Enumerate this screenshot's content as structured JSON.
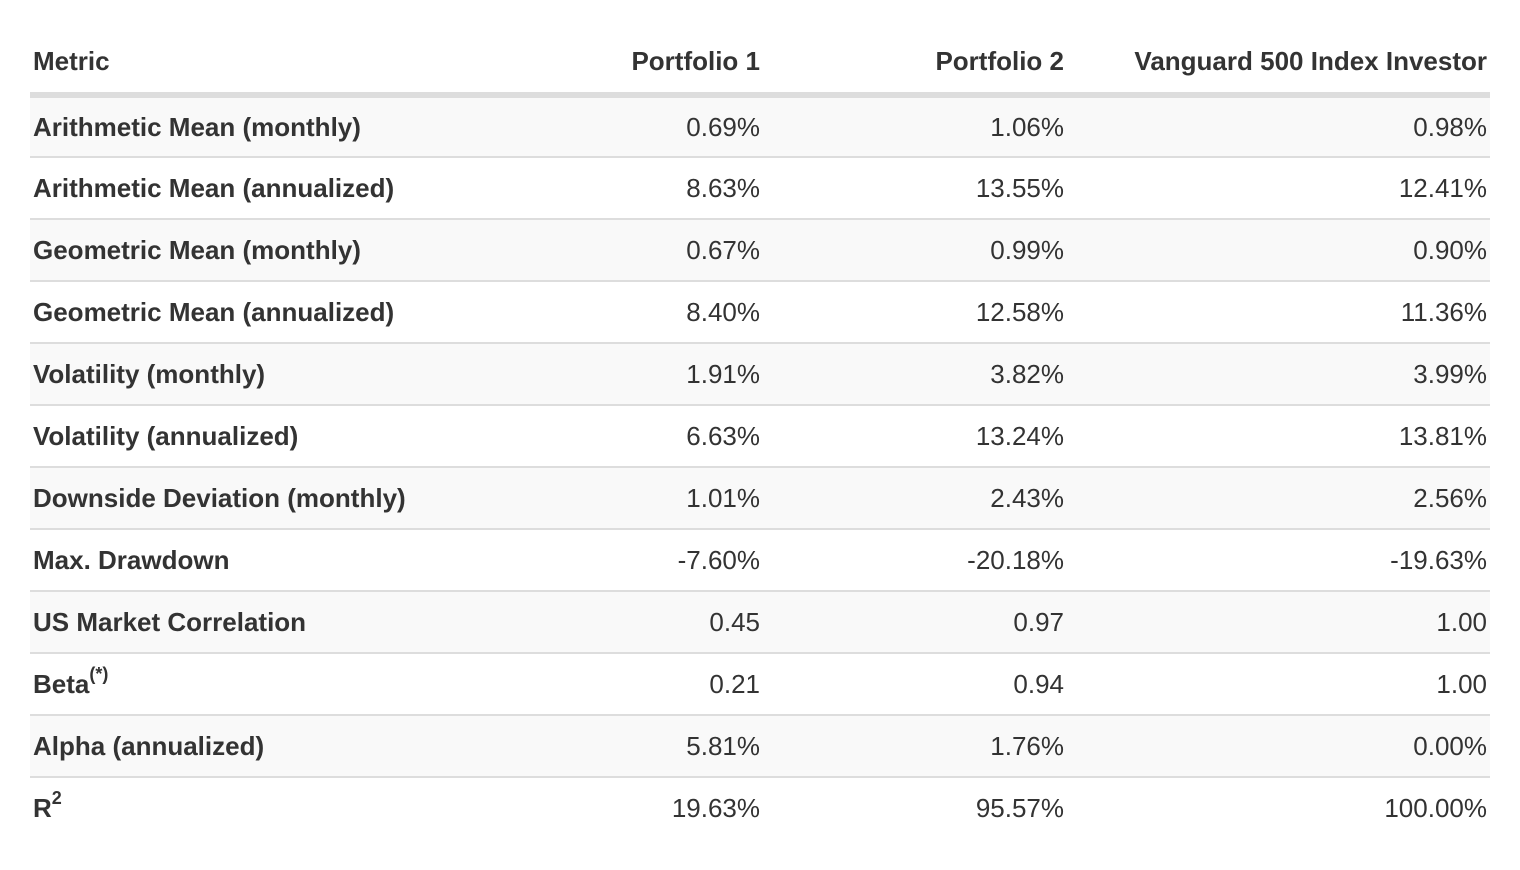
{
  "table": {
    "headers": [
      "Metric",
      "Portfolio 1",
      "Portfolio 2",
      "Vanguard 500 Index Investor"
    ],
    "rows": [
      {
        "metric": "Arithmetic Mean (monthly)",
        "sup": "",
        "p1": "0.69%",
        "p2": "1.06%",
        "bench": "0.98%"
      },
      {
        "metric": "Arithmetic Mean (annualized)",
        "sup": "",
        "p1": "8.63%",
        "p2": "13.55%",
        "bench": "12.41%"
      },
      {
        "metric": "Geometric Mean (monthly)",
        "sup": "",
        "p1": "0.67%",
        "p2": "0.99%",
        "bench": "0.90%"
      },
      {
        "metric": "Geometric Mean (annualized)",
        "sup": "",
        "p1": "8.40%",
        "p2": "12.58%",
        "bench": "11.36%"
      },
      {
        "metric": "Volatility (monthly)",
        "sup": "",
        "p1": "1.91%",
        "p2": "3.82%",
        "bench": "3.99%"
      },
      {
        "metric": "Volatility (annualized)",
        "sup": "",
        "p1": "6.63%",
        "p2": "13.24%",
        "bench": "13.81%"
      },
      {
        "metric": "Downside Deviation (monthly)",
        "sup": "",
        "p1": "1.01%",
        "p2": "2.43%",
        "bench": "2.56%"
      },
      {
        "metric": "Max. Drawdown",
        "sup": "",
        "p1": "-7.60%",
        "p2": "-20.18%",
        "bench": "-19.63%"
      },
      {
        "metric": "US Market Correlation",
        "sup": "",
        "p1": "0.45",
        "p2": "0.97",
        "bench": "1.00"
      },
      {
        "metric": "Beta",
        "sup": "(*)",
        "p1": "0.21",
        "p2": "0.94",
        "bench": "1.00"
      },
      {
        "metric": "Alpha (annualized)",
        "sup": "",
        "p1": "5.81%",
        "p2": "1.76%",
        "bench": "0.00%"
      },
      {
        "metric": "R",
        "sup": "2",
        "p1": "19.63%",
        "p2": "95.57%",
        "bench": "100.00%"
      }
    ]
  }
}
